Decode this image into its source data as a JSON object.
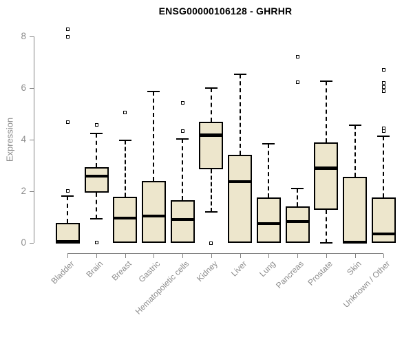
{
  "chart_data": {
    "type": "boxplot",
    "title": "ENSG00000106128 - GHRHR",
    "ylabel": "Expression",
    "xlabel": "",
    "ylim": [
      0,
      8
    ],
    "yticks": [
      0,
      2,
      4,
      6,
      8
    ],
    "grid": false,
    "legend": false,
    "categories": [
      "Bladder",
      "Brain",
      "Breast",
      "Gastric",
      "Hematopoietic cells",
      "Kidney",
      "Liver",
      "Lung",
      "Pancreas",
      "Prostate",
      "Skin",
      "Unknown / Other"
    ],
    "boxes": [
      {
        "name": "Bladder",
        "q1": 0,
        "median": 0.05,
        "q3": 0.78,
        "whisker_low": 0,
        "whisker_high": 1.83,
        "outliers": [
          8.3,
          8.0,
          4.7,
          2.02
        ]
      },
      {
        "name": "Brain",
        "q1": 1.96,
        "median": 2.6,
        "q3": 2.95,
        "whisker_low": 0.93,
        "whisker_high": 4.25,
        "outliers": [
          4.58,
          0.02
        ]
      },
      {
        "name": "Breast",
        "q1": 0,
        "median": 0.97,
        "q3": 1.8,
        "whisker_low": 0,
        "whisker_high": 3.97,
        "outliers": [
          5.07
        ]
      },
      {
        "name": "Gastric",
        "q1": 0,
        "median": 1.05,
        "q3": 2.42,
        "whisker_low": 0,
        "whisker_high": 5.88,
        "outliers": []
      },
      {
        "name": "Hematopoietic cells",
        "q1": 0,
        "median": 0.91,
        "q3": 1.65,
        "whisker_low": 0,
        "whisker_high": 4.04,
        "outliers": [
          5.44,
          4.34
        ]
      },
      {
        "name": "Kidney",
        "q1": 2.86,
        "median": 4.18,
        "q3": 4.69,
        "whisker_low": 1.22,
        "whisker_high": 6.02,
        "outliers": [
          0.0
        ]
      },
      {
        "name": "Liver",
        "q1": 0,
        "median": 2.38,
        "q3": 3.43,
        "whisker_low": 0,
        "whisker_high": 6.55,
        "outliers": []
      },
      {
        "name": "Lung",
        "q1": 0,
        "median": 0.76,
        "q3": 1.78,
        "whisker_low": 0,
        "whisker_high": 3.85,
        "outliers": []
      },
      {
        "name": "Pancreas",
        "q1": 0,
        "median": 0.84,
        "q3": 1.41,
        "whisker_low": 0,
        "whisker_high": 2.12,
        "outliers": [
          7.22,
          6.24
        ]
      },
      {
        "name": "Prostate",
        "q1": 1.29,
        "median": 2.9,
        "q3": 3.89,
        "whisker_low": 0.02,
        "whisker_high": 6.28,
        "outliers": []
      },
      {
        "name": "Skin",
        "q1": 0,
        "median": 0.04,
        "q3": 2.58,
        "whisker_low": 0,
        "whisker_high": 4.58,
        "outliers": []
      },
      {
        "name": "Unknown / Other",
        "q1": 0,
        "median": 0.35,
        "q3": 1.76,
        "whisker_low": 0,
        "whisker_high": 4.13,
        "outliers": [
          6.72,
          6.2,
          6.05,
          5.9,
          4.45,
          4.35
        ]
      }
    ],
    "colors": {
      "box_fill": "#EDE6CC",
      "box_border": "#000000",
      "median": "#000000",
      "whisker": "#000000",
      "axis": "#808080",
      "tick_label": "#8C8C8C",
      "title": "#000000",
      "background": "#FFFFFF"
    }
  }
}
